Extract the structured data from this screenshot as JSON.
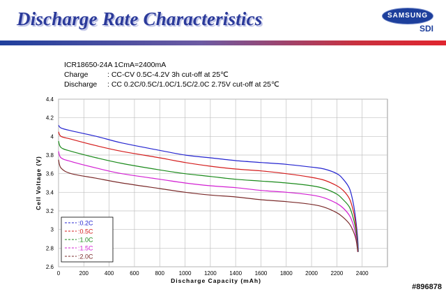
{
  "header": {
    "title": "Discharge Rate Characteristics",
    "logo_brand": "SAMSUNG",
    "logo_sub": "SDI"
  },
  "spec": {
    "model": "ICR18650-24A  1CmA=2400mA",
    "charge_label": "Charge",
    "charge_value": ": CC-CV  0.5C-4.2V  3h cut-off at 25℃",
    "discharge_label": "Discharge",
    "discharge_value": ": CC 0.2C/0.5C/1.0C/1.5C/2.0C 2.75V cut-off at 25℃"
  },
  "watermark": "#896878",
  "colors": {
    "title": "#2b3a9a",
    "grid": "#c0c0c0",
    "s02": "#2424d0",
    "s05": "#d41c1c",
    "s10": "#1a8a1a",
    "s15": "#d21fd2",
    "s20": "#7a2a2a"
  },
  "chart_data": {
    "type": "line",
    "title": "",
    "xlabel": "Discharge Capacity (mAh)",
    "ylabel": "Cell Voltage (V)",
    "xlim": [
      0,
      2600
    ],
    "ylim": [
      2.6,
      4.4
    ],
    "xticks": [
      "0",
      "200",
      "400",
      "600",
      "800",
      "1000",
      "1200",
      "1400",
      "1600",
      "1800",
      "2000",
      "2200",
      "2400"
    ],
    "yticks": [
      "2.6",
      "2.8",
      "3",
      "3.2",
      "3.4",
      "3.6",
      "3.8",
      "4",
      "4.2",
      "4.4"
    ],
    "grid": true,
    "legend_position": "bottom-left",
    "series": [
      {
        "name": "0.2C",
        "legend": ":0.2C",
        "color": "#2424d0",
        "x": [
          0,
          20,
          100,
          300,
          500,
          800,
          1000,
          1200,
          1400,
          1600,
          1800,
          2000,
          2100,
          2200,
          2250,
          2300,
          2330,
          2350,
          2365,
          2370
        ],
        "y": [
          4.12,
          4.09,
          4.06,
          4.0,
          3.93,
          3.85,
          3.8,
          3.77,
          3.74,
          3.72,
          3.7,
          3.67,
          3.65,
          3.6,
          3.54,
          3.44,
          3.28,
          3.1,
          2.9,
          2.76
        ]
      },
      {
        "name": "0.5C",
        "legend": ":0.5C",
        "color": "#d41c1c",
        "x": [
          0,
          20,
          100,
          300,
          500,
          800,
          1000,
          1200,
          1400,
          1600,
          1800,
          2000,
          2100,
          2200,
          2250,
          2300,
          2330,
          2350,
          2362,
          2368
        ],
        "y": [
          4.05,
          4.0,
          3.97,
          3.9,
          3.84,
          3.77,
          3.72,
          3.68,
          3.65,
          3.63,
          3.6,
          3.56,
          3.53,
          3.47,
          3.42,
          3.33,
          3.2,
          3.05,
          2.88,
          2.76
        ]
      },
      {
        "name": "1.0C",
        "legend": ":1.0C",
        "color": "#1a8a1a",
        "x": [
          0,
          20,
          100,
          300,
          500,
          800,
          1000,
          1200,
          1400,
          1600,
          1800,
          2000,
          2100,
          2200,
          2250,
          2300,
          2330,
          2350,
          2362,
          2368
        ],
        "y": [
          3.95,
          3.88,
          3.84,
          3.77,
          3.71,
          3.64,
          3.6,
          3.57,
          3.54,
          3.52,
          3.5,
          3.47,
          3.44,
          3.38,
          3.32,
          3.24,
          3.12,
          3.0,
          2.86,
          2.76
        ]
      },
      {
        "name": "1.5C",
        "legend": ":1.5C",
        "color": "#d21fd2",
        "x": [
          0,
          20,
          100,
          300,
          500,
          800,
          1000,
          1200,
          1400,
          1600,
          1800,
          2000,
          2100,
          2200,
          2250,
          2300,
          2330,
          2350,
          2360,
          2366
        ],
        "y": [
          3.84,
          3.77,
          3.73,
          3.66,
          3.6,
          3.54,
          3.5,
          3.47,
          3.45,
          3.42,
          3.4,
          3.37,
          3.34,
          3.28,
          3.23,
          3.15,
          3.05,
          2.94,
          2.84,
          2.76
        ]
      },
      {
        "name": "2.0C",
        "legend": ":2.0C",
        "color": "#7a2a2a",
        "x": [
          0,
          20,
          100,
          300,
          500,
          800,
          1000,
          1200,
          1400,
          1600,
          1800,
          2000,
          2100,
          2200,
          2250,
          2300,
          2330,
          2350,
          2360,
          2365
        ],
        "y": [
          3.75,
          3.66,
          3.6,
          3.55,
          3.5,
          3.44,
          3.4,
          3.37,
          3.35,
          3.32,
          3.3,
          3.27,
          3.24,
          3.18,
          3.13,
          3.06,
          2.98,
          2.9,
          2.82,
          2.76
        ]
      }
    ]
  }
}
